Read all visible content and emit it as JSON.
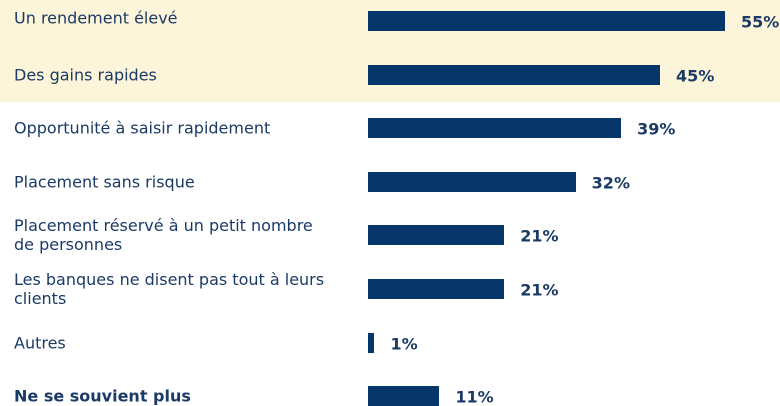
{
  "chart_data": {
    "type": "bar",
    "orientation": "horizontal",
    "categories": [
      "Un rendement élevé",
      "Des gains rapides",
      "Opportunité à saisir rapidement",
      "Placement sans risque",
      "Placement réservé à un petit nombre de personnes",
      "Les banques ne disent pas tout à leurs clients",
      "Autres",
      "Ne se souvient plus"
    ],
    "values": [
      55,
      45,
      39,
      32,
      21,
      21,
      1,
      11
    ],
    "value_labels": [
      "55%",
      "45%",
      "39%",
      "32%",
      "21%",
      "21%",
      "1%",
      "11%"
    ],
    "color": "#06366a",
    "highlight_color": "#fdf5d9"
  }
}
